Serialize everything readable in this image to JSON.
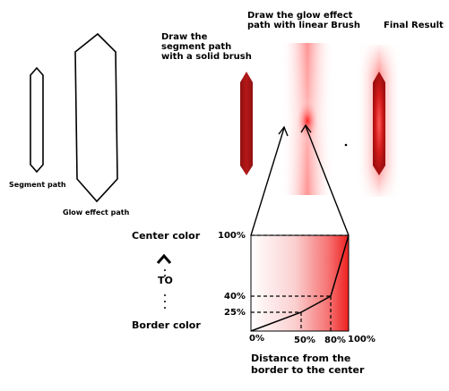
{
  "labels": {
    "segment_path": "Segment path",
    "glow_path": "Glow effect path",
    "solid_brush_l1": "Draw the",
    "solid_brush_l2": "segment path",
    "solid_brush_l3": "with a solid brush",
    "glow_brush_l1": "Draw the glow effect",
    "glow_brush_l2": "path with linear Brush",
    "final_result": "Final Result",
    "center_color": "Center color",
    "to": "TO",
    "border_color": "Border color",
    "distance_l1": "Distance from the",
    "distance_l2": "border to the center"
  },
  "axis": {
    "y_ticks": [
      "100%",
      "40%",
      "25%"
    ],
    "x_ticks": [
      "0%",
      "50%",
      "80%",
      "100%"
    ]
  },
  "colors": {
    "dark_red": "#a31414",
    "bright_red": "#e81c1c",
    "glow_red": "#ff2a2a",
    "ink": "#000000"
  }
}
